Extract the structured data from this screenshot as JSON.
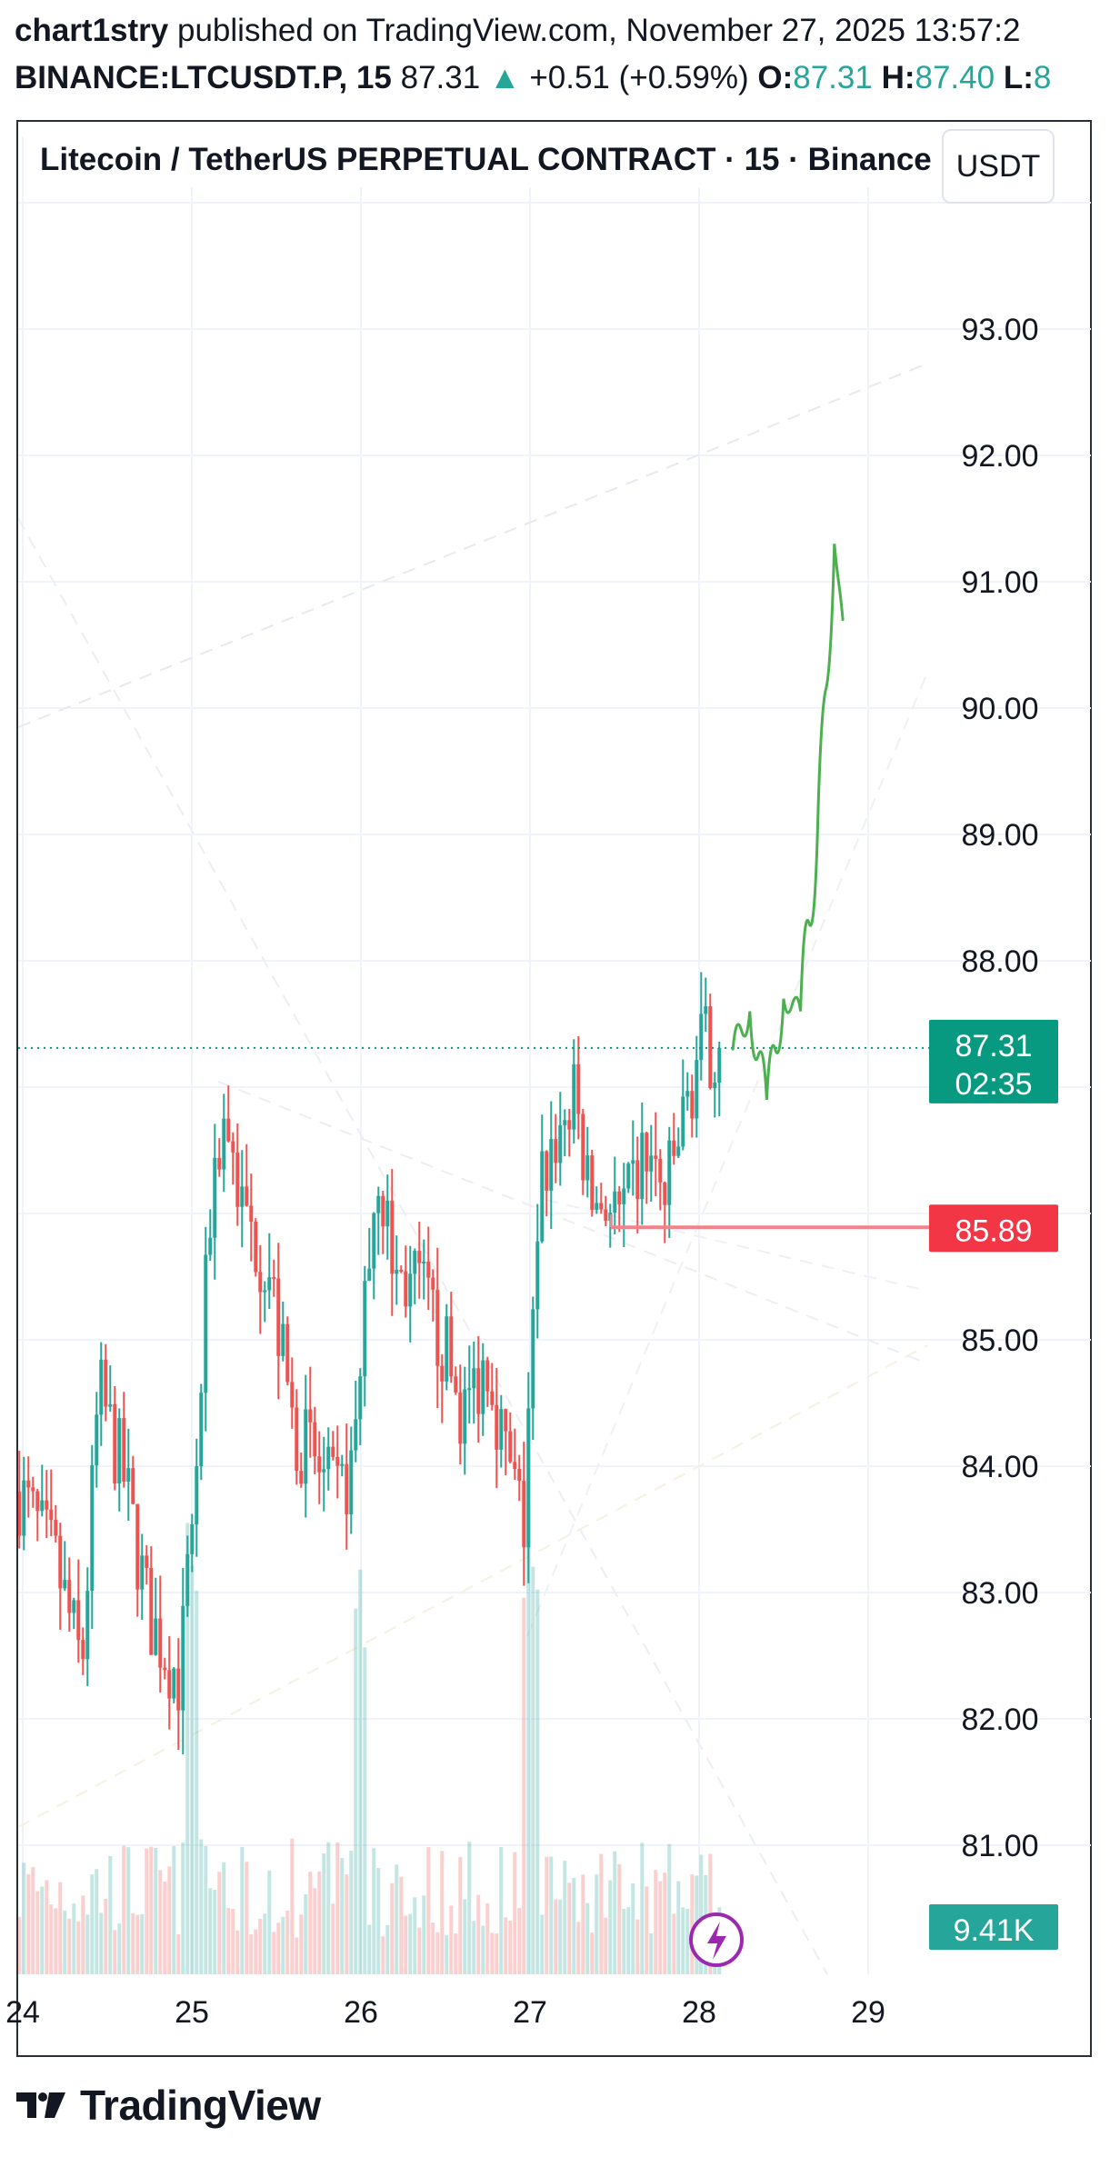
{
  "header": {
    "author": "chart1stry",
    "published_text": "published on TradingView.com, November 27, 2025 13:57:2",
    "symbol": "BINANCE:LTCUSDT.P, 15",
    "last": "87.31",
    "change": "+0.51 (+0.59%)",
    "o_label": "O:",
    "o_value": "87.31",
    "h_label": "H:",
    "h_value": "87.40",
    "l_label": "L:",
    "l_value": "8"
  },
  "title": "Litecoin / TetherUS PERPETUAL CONTRACT · 15 · Binance",
  "currency": "USDT",
  "price_axis": [
    "93.00",
    "92.00",
    "91.00",
    "90.00",
    "89.00",
    "88.00",
    "85.00",
    "84.00",
    "83.00",
    "82.00",
    "81.00"
  ],
  "time_axis": [
    "24",
    "25",
    "26",
    "27",
    "28",
    "29"
  ],
  "badges": {
    "price": "87.31",
    "countdown": "02:35",
    "level": "85.89",
    "volume": "9.41K"
  },
  "colors": {
    "up": "#26a69a",
    "down": "#ef5350",
    "level": "#f23645",
    "projection": "#4caf50",
    "grid": "#f0f3fa",
    "text": "#131722",
    "badge_price": "#089981"
  },
  "icons": {
    "flash": "lightning-icon",
    "logo": "tradingview-logo-icon"
  },
  "footer": {
    "brand": "TradingView"
  },
  "chart_data": {
    "type": "candlestick",
    "interval": "15",
    "y_range": [
      80.4,
      94.3
    ],
    "x_labels": [
      "24",
      "25",
      "26",
      "27",
      "28",
      "29"
    ],
    "last_price": 87.31,
    "horizontal_level": 85.89,
    "grid": true,
    "volume_last": "9.41K",
    "price_path_daily_approx": [
      {
        "day": "24",
        "price_range": [
          82.1,
          84.9
        ]
      },
      {
        "day": "25",
        "price_range": [
          83.5,
          87.0
        ]
      },
      {
        "day": "26",
        "price_range": [
          83.2,
          86.6
        ]
      },
      {
        "day": "27",
        "price_range": [
          85.8,
          87.7
        ]
      },
      {
        "day": "28",
        "price_range": [
          86.0,
          87.6
        ]
      }
    ],
    "projection": [
      {
        "day": 28.2,
        "price": 87.3
      },
      {
        "day": 28.3,
        "price": 87.6
      },
      {
        "day": 28.4,
        "price": 86.9
      },
      {
        "day": 28.5,
        "price": 87.7
      },
      {
        "day": 28.6,
        "price": 87.6
      },
      {
        "day": 28.7,
        "price": 89.0
      },
      {
        "day": 28.8,
        "price": 91.3
      },
      {
        "day": 28.85,
        "price": 90.7
      }
    ]
  }
}
